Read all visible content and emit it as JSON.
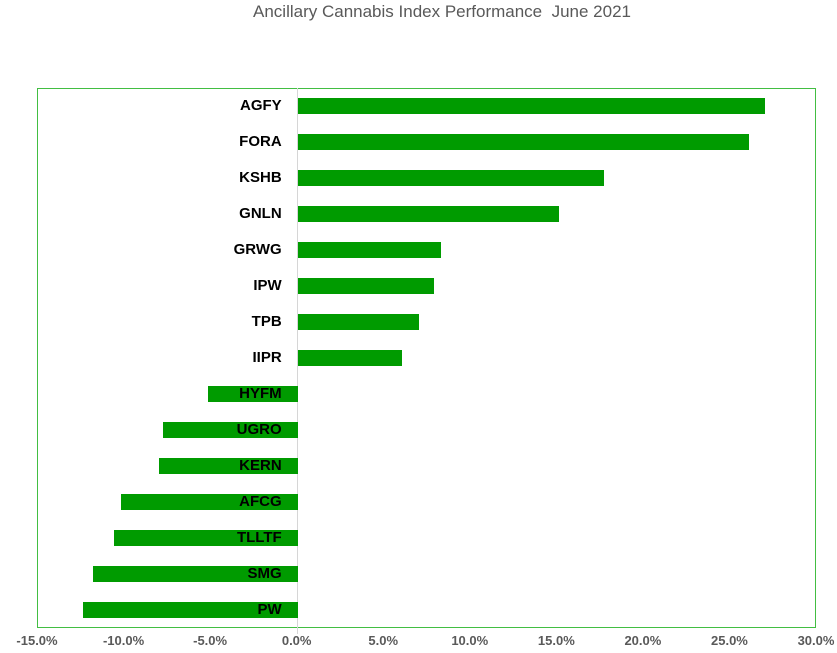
{
  "title": "Ancillary Cannabis Index Performance  June 2021",
  "colors": {
    "bar": "#009B00",
    "plot_border": "#42BE42",
    "axis_line": "#D6D6D6",
    "title_text": "#595959",
    "tick_text": "#595959",
    "category_text": "#000000"
  },
  "chart_data": {
    "type": "bar",
    "orientation": "horizontal",
    "title": "Ancillary Cannabis Index Performance  June 2021",
    "xlabel": "",
    "ylabel": "",
    "unit": "%",
    "xlim": [
      -15,
      30
    ],
    "grid": false,
    "legend": false,
    "categories": [
      "AGFY",
      "FORA",
      "KSHB",
      "GNLN",
      "GRWG",
      "IPW",
      "TPB",
      "IIPR",
      "HYFM",
      "UGRO",
      "KERN",
      "AFCG",
      "TLLTF",
      "SMG",
      "PW"
    ],
    "values": [
      27.0,
      26.1,
      17.7,
      15.1,
      8.3,
      7.9,
      7.0,
      6.0,
      -5.2,
      -7.8,
      -8.0,
      -10.2,
      -10.6,
      -11.8,
      -12.4
    ],
    "x_tick_values": [
      -15,
      -10,
      -5,
      0,
      5,
      10,
      15,
      20,
      25,
      30
    ],
    "x_tick_labels": [
      "-15.0%",
      "-10.0%",
      "-5.0%",
      "0.0%",
      "5.0%",
      "10.0%",
      "15.0%",
      "20.0%",
      "25.0%",
      "30.0%"
    ]
  }
}
